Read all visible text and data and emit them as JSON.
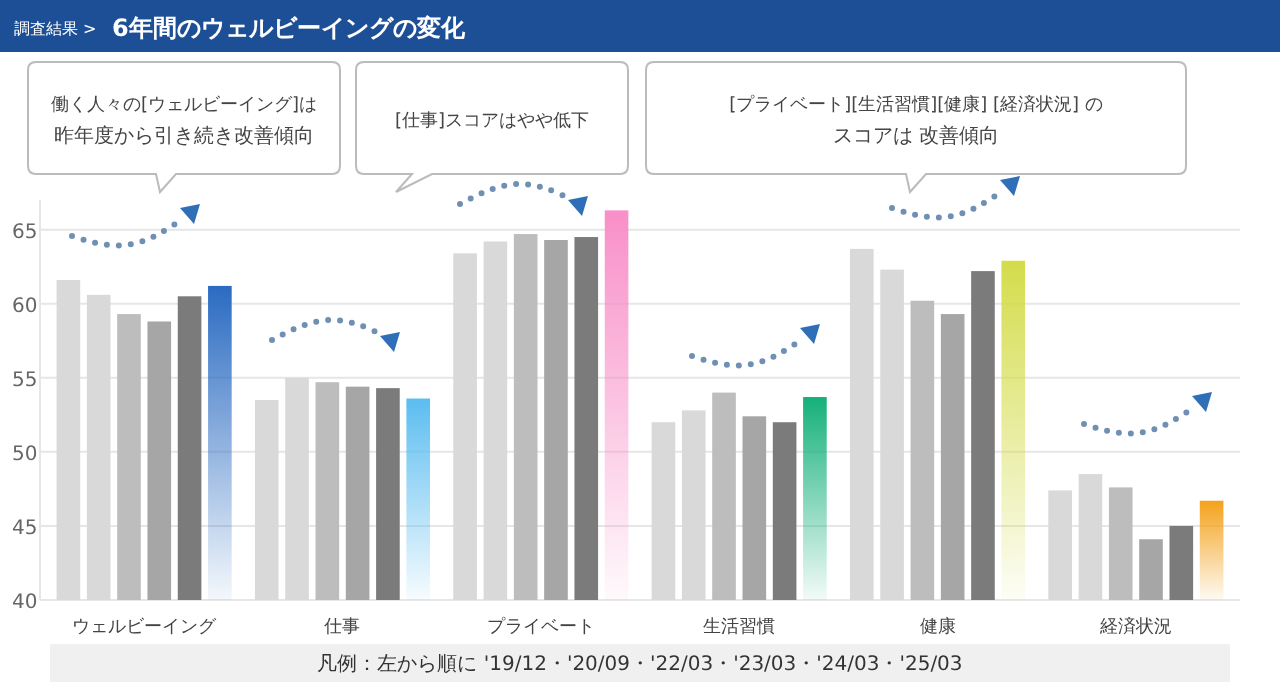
{
  "chart_data": {
    "type": "bar",
    "title": "6年間のウェルビーイングの変化",
    "subtitle": "調査結果 >",
    "categories": [
      "ウェルビーイング",
      "仕事",
      "プライベート",
      "生活習慣",
      "健康",
      "経済状況"
    ],
    "series": [
      {
        "color": "#d9d9d9",
        "values": [
          61.6,
          53.5,
          63.4,
          52.0,
          63.7,
          47.4
        ]
      },
      {
        "color": "#d9d9d9",
        "values": [
          60.6,
          55.0,
          64.2,
          52.8,
          62.3,
          48.5
        ]
      },
      {
        "color": "#bdbdbd",
        "values": [
          59.3,
          54.7,
          64.7,
          54.0,
          60.2,
          47.6
        ]
      },
      {
        "color": "#a6a6a6",
        "values": [
          58.8,
          54.4,
          64.3,
          52.4,
          59.3,
          44.1
        ]
      },
      {
        "color": "#7b7b7b",
        "values": [
          60.5,
          54.3,
          64.5,
          52.0,
          62.2,
          45.0
        ]
      },
      {
        "colors": [
          "#2a6bc2",
          "#5bbdf0",
          "#f88fc8",
          "#14b07a",
          "#d4dc4a",
          "#f4a21c"
        ],
        "values": [
          61.2,
          53.6,
          66.3,
          53.7,
          62.9,
          46.7
        ]
      }
    ],
    "ylim": [
      40,
      67
    ],
    "yticks": [
      40,
      45,
      50,
      55,
      60,
      65
    ],
    "grid": "y",
    "annotations": [
      "働く人々の[ウェルビーイング]は",
      "昨年度から引き続き改善傾向",
      "[仕事]スコアはやや低下",
      "[プライベート][生活習慣][健康] [経済状況] の",
      "スコアは 改善傾向",
      "凡例：左から順に '19/12・'20/09・'22/03・'23/03・'24/03・'25/03"
    ]
  }
}
